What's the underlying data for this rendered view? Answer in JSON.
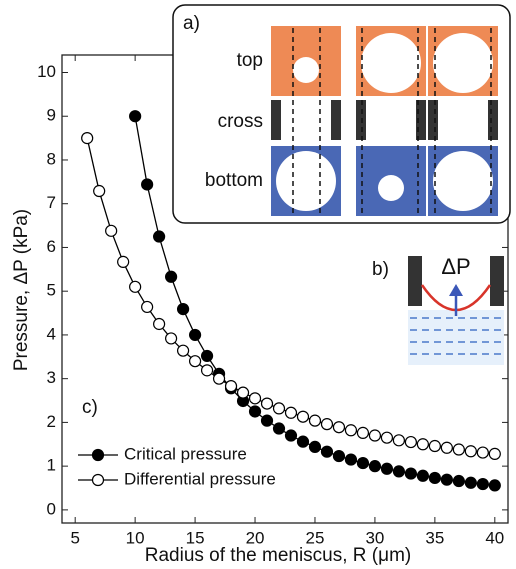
{
  "chart_data": {
    "type": "line",
    "xlabel": "Radius of the meniscus, R (μm)",
    "ylabel": "Pressure, ΔP (kPa)",
    "xlim": [
      3.9,
      41.1
    ],
    "ylim": [
      -0.3,
      10.4
    ],
    "xticks": [
      5,
      10,
      15,
      20,
      25,
      30,
      35,
      40
    ],
    "yticks": [
      0,
      1,
      2,
      3,
      4,
      5,
      6,
      7,
      8,
      9,
      10
    ],
    "legend": "lower left",
    "series": [
      {
        "name": "Critical pressure",
        "color": "#000000",
        "filled": true,
        "x": [
          10,
          11,
          12,
          13,
          14,
          15,
          16,
          17,
          18,
          19,
          20,
          21,
          22,
          23,
          24,
          25,
          26,
          27,
          28,
          29,
          30,
          31,
          32,
          33,
          34,
          35,
          36,
          37,
          38,
          39,
          40
        ],
        "values": [
          9.0,
          7.44,
          6.25,
          5.33,
          4.59,
          4.0,
          3.52,
          3.11,
          2.78,
          2.49,
          2.25,
          2.04,
          1.86,
          1.7,
          1.56,
          1.44,
          1.33,
          1.23,
          1.15,
          1.07,
          1.0,
          0.94,
          0.88,
          0.83,
          0.78,
          0.73,
          0.69,
          0.66,
          0.62,
          0.59,
          0.56
        ]
      },
      {
        "name": "Differential pressure",
        "color": "#000000",
        "filled": false,
        "x": [
          6,
          7,
          8,
          9,
          10,
          11,
          12,
          13,
          14,
          15,
          16,
          17,
          18,
          19,
          20,
          21,
          22,
          23,
          24,
          25,
          26,
          27,
          28,
          29,
          30,
          31,
          32,
          33,
          34,
          35,
          36,
          37,
          38,
          39,
          40
        ],
        "values": [
          8.5,
          7.29,
          6.38,
          5.67,
          5.1,
          4.64,
          4.25,
          3.92,
          3.64,
          3.4,
          3.19,
          3.0,
          2.83,
          2.68,
          2.55,
          2.43,
          2.32,
          2.22,
          2.13,
          2.04,
          1.96,
          1.89,
          1.82,
          1.76,
          1.7,
          1.65,
          1.59,
          1.55,
          1.5,
          1.46,
          1.42,
          1.38,
          1.34,
          1.31,
          1.28
        ]
      }
    ],
    "panel_label": "c)",
    "inset_a": {
      "label": "a)",
      "rows": [
        "top",
        "cross",
        "bottom"
      ]
    },
    "inset_b": {
      "label": "b)",
      "symbol": "ΔP"
    }
  }
}
